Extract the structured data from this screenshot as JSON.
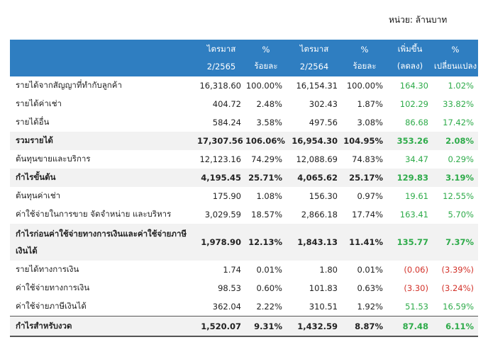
{
  "unit_label": "หน่วย: ล้านบาท",
  "header": {
    "row1": [
      "",
      "ไตรมาส",
      "%",
      "ไตรมาส",
      "%",
      "เพิ่มขึ้น",
      "%"
    ],
    "row2": [
      "",
      "2/2565",
      "ร้อยละ",
      "2/2564",
      "ร้อยละ",
      "(ลดลง)",
      "เปลี่ยนแปลง"
    ]
  },
  "rows": [
    {
      "label": "รายได้จากสัญญาที่ทำกับลูกค้า",
      "v1": "16,318.60",
      "p1": "100.00%",
      "v2": "16,154.31",
      "p2": "100.00%",
      "chg": "164.30",
      "pct": "1.02%",
      "style": "normal",
      "sign": "g"
    },
    {
      "label": "รายได้ค่าเช่า",
      "v1": "404.72",
      "p1": "2.48%",
      "v2": "302.43",
      "p2": "1.87%",
      "chg": "102.29",
      "pct": "33.82%",
      "style": "normal",
      "sign": "g"
    },
    {
      "label": "รายได้อื่น",
      "v1": "584.24",
      "p1": "3.58%",
      "v2": "497.56",
      "p2": "3.08%",
      "chg": "86.68",
      "pct": "17.42%",
      "style": "normal",
      "sign": "g"
    },
    {
      "label": "รวมรายได้",
      "v1": "17,307.56",
      "p1": "106.06%",
      "v2": "16,954.30",
      "p2": "104.95%",
      "chg": "353.26",
      "pct": "2.08%",
      "style": "bold",
      "sign": "g"
    },
    {
      "label": "ต้นทุนขายและบริการ",
      "v1": "12,123.16",
      "p1": "74.29%",
      "v2": "12,088.69",
      "p2": "74.83%",
      "chg": "34.47",
      "pct": "0.29%",
      "style": "normal",
      "sign": "g"
    },
    {
      "label": "กำไรขั้นต้น",
      "v1": "4,195.45",
      "p1": "25.71%",
      "v2": "4,065.62",
      "p2": "25.17%",
      "chg": "129.83",
      "pct": "3.19%",
      "style": "bold",
      "sign": "g"
    },
    {
      "label": "ต้นทุนค่าเช่า",
      "v1": "175.90",
      "p1": "1.08%",
      "v2": "156.30",
      "p2": "0.97%",
      "chg": "19.61",
      "pct": "12.55%",
      "style": "normal",
      "sign": "g"
    },
    {
      "label": "ค่าใช้จ่ายในการขาย จัดจำหน่าย และบริหาร",
      "v1": "3,029.59",
      "p1": "18.57%",
      "v2": "2,866.18",
      "p2": "17.74%",
      "chg": "163.41",
      "pct": "5.70%",
      "style": "normal",
      "sign": "g"
    },
    {
      "label": "กำไรก่อนค่าใช้จ่ายทางการเงินและค่าใช้จ่ายภาษีเงินได้",
      "v1": "1,978.90",
      "p1": "12.13%",
      "v2": "1,843.13",
      "p2": "11.41%",
      "chg": "135.77",
      "pct": "7.37%",
      "style": "tall",
      "sign": "g"
    },
    {
      "label": "รายได้ทางการเงิน",
      "v1": "1.74",
      "p1": "0.01%",
      "v2": "1.80",
      "p2": "0.01%",
      "chg": "(0.06)",
      "pct": "(3.39%)",
      "style": "normal",
      "sign": "r"
    },
    {
      "label": "ค่าใช้จ่ายทางการเงิน",
      "v1": "98.53",
      "p1": "0.60%",
      "v2": "101.83",
      "p2": "0.63%",
      "chg": "(3.30)",
      "pct": "(3.24%)",
      "style": "normal",
      "sign": "r"
    },
    {
      "label": "ค่าใช้จ่ายภาษีเงินได้",
      "v1": "362.04",
      "p1": "2.22%",
      "v2": "310.51",
      "p2": "1.92%",
      "chg": "51.53",
      "pct": "16.59%",
      "style": "normal",
      "sign": "g"
    },
    {
      "label": "กำไรสำหรับงวด",
      "v1": "1,520.07",
      "p1": "9.31%",
      "v2": "1,432.59",
      "p2": "8.87%",
      "chg": "87.48",
      "pct": "6.11%",
      "style": "total",
      "sign": "g"
    }
  ]
}
